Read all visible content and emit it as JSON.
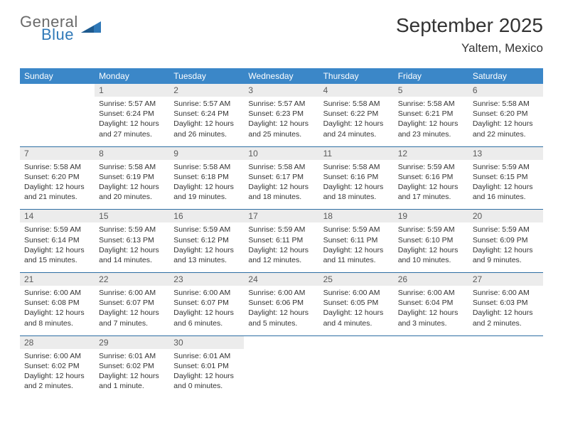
{
  "logo": {
    "line1": "General",
    "line2": "Blue"
  },
  "colors": {
    "header_bg": "#3b87c8",
    "header_text": "#ffffff",
    "daynum_bg": "#ececec",
    "daynum_text": "#5a5a5a",
    "divider": "#2d6ea3",
    "logo_gray": "#6a6a6a",
    "logo_blue": "#2f78b7"
  },
  "title": "September 2025",
  "location": "Yaltem, Mexico",
  "dow": [
    "Sunday",
    "Monday",
    "Tuesday",
    "Wednesday",
    "Thursday",
    "Friday",
    "Saturday"
  ],
  "weeks": [
    [
      null,
      {
        "n": "1",
        "sr": "5:57 AM",
        "ss": "6:24 PM",
        "dl": "12 hours and 27 minutes."
      },
      {
        "n": "2",
        "sr": "5:57 AM",
        "ss": "6:24 PM",
        "dl": "12 hours and 26 minutes."
      },
      {
        "n": "3",
        "sr": "5:57 AM",
        "ss": "6:23 PM",
        "dl": "12 hours and 25 minutes."
      },
      {
        "n": "4",
        "sr": "5:58 AM",
        "ss": "6:22 PM",
        "dl": "12 hours and 24 minutes."
      },
      {
        "n": "5",
        "sr": "5:58 AM",
        "ss": "6:21 PM",
        "dl": "12 hours and 23 minutes."
      },
      {
        "n": "6",
        "sr": "5:58 AM",
        "ss": "6:20 PM",
        "dl": "12 hours and 22 minutes."
      }
    ],
    [
      {
        "n": "7",
        "sr": "5:58 AM",
        "ss": "6:20 PM",
        "dl": "12 hours and 21 minutes."
      },
      {
        "n": "8",
        "sr": "5:58 AM",
        "ss": "6:19 PM",
        "dl": "12 hours and 20 minutes."
      },
      {
        "n": "9",
        "sr": "5:58 AM",
        "ss": "6:18 PM",
        "dl": "12 hours and 19 minutes."
      },
      {
        "n": "10",
        "sr": "5:58 AM",
        "ss": "6:17 PM",
        "dl": "12 hours and 18 minutes."
      },
      {
        "n": "11",
        "sr": "5:58 AM",
        "ss": "6:16 PM",
        "dl": "12 hours and 18 minutes."
      },
      {
        "n": "12",
        "sr": "5:59 AM",
        "ss": "6:16 PM",
        "dl": "12 hours and 17 minutes."
      },
      {
        "n": "13",
        "sr": "5:59 AM",
        "ss": "6:15 PM",
        "dl": "12 hours and 16 minutes."
      }
    ],
    [
      {
        "n": "14",
        "sr": "5:59 AM",
        "ss": "6:14 PM",
        "dl": "12 hours and 15 minutes."
      },
      {
        "n": "15",
        "sr": "5:59 AM",
        "ss": "6:13 PM",
        "dl": "12 hours and 14 minutes."
      },
      {
        "n": "16",
        "sr": "5:59 AM",
        "ss": "6:12 PM",
        "dl": "12 hours and 13 minutes."
      },
      {
        "n": "17",
        "sr": "5:59 AM",
        "ss": "6:11 PM",
        "dl": "12 hours and 12 minutes."
      },
      {
        "n": "18",
        "sr": "5:59 AM",
        "ss": "6:11 PM",
        "dl": "12 hours and 11 minutes."
      },
      {
        "n": "19",
        "sr": "5:59 AM",
        "ss": "6:10 PM",
        "dl": "12 hours and 10 minutes."
      },
      {
        "n": "20",
        "sr": "5:59 AM",
        "ss": "6:09 PM",
        "dl": "12 hours and 9 minutes."
      }
    ],
    [
      {
        "n": "21",
        "sr": "6:00 AM",
        "ss": "6:08 PM",
        "dl": "12 hours and 8 minutes."
      },
      {
        "n": "22",
        "sr": "6:00 AM",
        "ss": "6:07 PM",
        "dl": "12 hours and 7 minutes."
      },
      {
        "n": "23",
        "sr": "6:00 AM",
        "ss": "6:07 PM",
        "dl": "12 hours and 6 minutes."
      },
      {
        "n": "24",
        "sr": "6:00 AM",
        "ss": "6:06 PM",
        "dl": "12 hours and 5 minutes."
      },
      {
        "n": "25",
        "sr": "6:00 AM",
        "ss": "6:05 PM",
        "dl": "12 hours and 4 minutes."
      },
      {
        "n": "26",
        "sr": "6:00 AM",
        "ss": "6:04 PM",
        "dl": "12 hours and 3 minutes."
      },
      {
        "n": "27",
        "sr": "6:00 AM",
        "ss": "6:03 PM",
        "dl": "12 hours and 2 minutes."
      }
    ],
    [
      {
        "n": "28",
        "sr": "6:00 AM",
        "ss": "6:02 PM",
        "dl": "12 hours and 2 minutes."
      },
      {
        "n": "29",
        "sr": "6:01 AM",
        "ss": "6:02 PM",
        "dl": "12 hours and 1 minute."
      },
      {
        "n": "30",
        "sr": "6:01 AM",
        "ss": "6:01 PM",
        "dl": "12 hours and 0 minutes."
      },
      null,
      null,
      null,
      null
    ]
  ],
  "labels": {
    "sunrise": "Sunrise:",
    "sunset": "Sunset:",
    "daylight": "Daylight:"
  }
}
